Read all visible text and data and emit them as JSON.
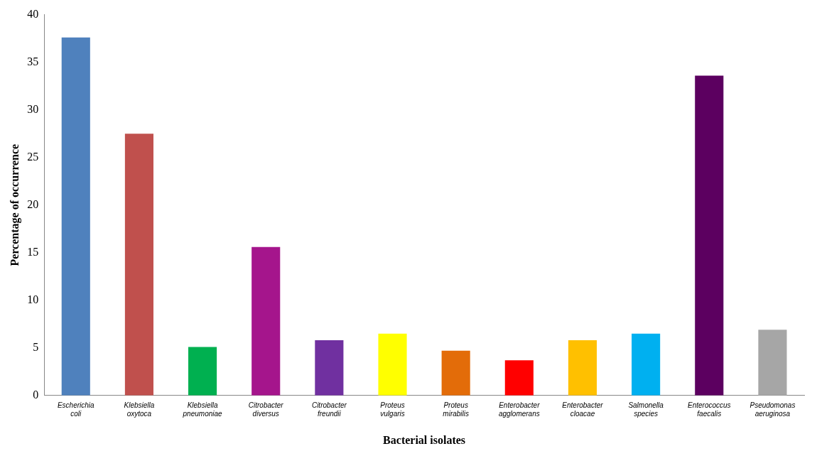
{
  "chart_data": {
    "type": "bar",
    "xlabel": "Bacterial isolates",
    "ylabel": "Percentage of occurrence",
    "categories": [
      "Escherichia coli",
      "Klebsiella oxytoca",
      "Klebsiella pneumoniae",
      "Citrobacter diversus",
      "Citrobacter freundii",
      "Proteus vulgaris",
      "Proteus mirabilis",
      "Enterobacter agglomerans",
      "Enterobacter cloacae",
      "Salmonella species",
      "Enterococcus faecalis",
      "Pseudomonas aeruginosa"
    ],
    "values": [
      37.6,
      27.5,
      5.1,
      15.6,
      5.8,
      6.5,
      4.7,
      3.7,
      5.8,
      6.5,
      33.6,
      6.9
    ],
    "colors": [
      "#4f81bd",
      "#c0504d",
      "#00b050",
      "#a5158c",
      "#7030a0",
      "#ffff00",
      "#e36c09",
      "#ff0000",
      "#ffc000",
      "#00b0f0",
      "#5c0060",
      "#a6a6a6"
    ],
    "ylim": [
      0,
      40
    ],
    "yticks": [
      0,
      5,
      10,
      15,
      20,
      25,
      30,
      35,
      40
    ],
    "grid": false,
    "legend": false
  }
}
